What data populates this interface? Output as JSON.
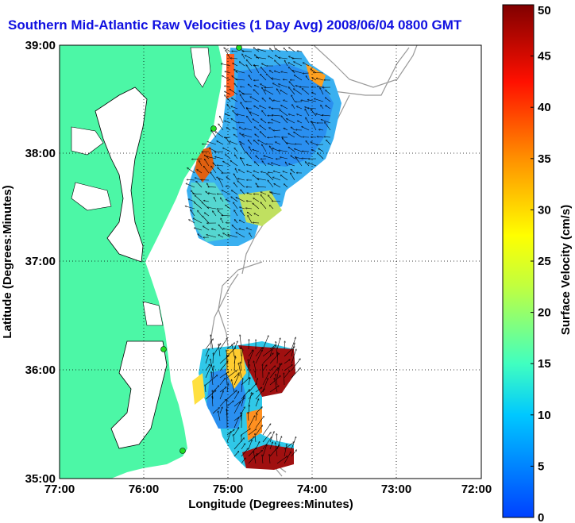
{
  "title": "Southern Mid-Atlantic Raw Velocities (1 Day Avg) 2008/06/04 0800 GMT",
  "x_axis": {
    "label": "Longitude (Degrees:Minutes)",
    "ticks": [
      "77:00",
      "76:00",
      "75:00",
      "74:00",
      "73:00",
      "72:00"
    ]
  },
  "y_axis": {
    "label": "Latitude (Degrees:Minutes)",
    "ticks": [
      "39:00",
      "38:00",
      "37:00",
      "36:00",
      "35:00"
    ]
  },
  "colorbar": {
    "label": "Surface Velocity (cm/s)",
    "ticks": [
      "0",
      "5",
      "10",
      "15",
      "20",
      "25",
      "30",
      "35",
      "40",
      "45",
      "50"
    ],
    "range": [
      0,
      50
    ]
  },
  "colors": {
    "land": "#4cf7a6",
    "water": "#ffffff",
    "bathymetry": "#888888",
    "title": "#1010e0",
    "station": "#22dd22"
  },
  "map_extent": {
    "lon_range": [
      -77,
      -72
    ],
    "lat_range": [
      35,
      39
    ]
  }
}
